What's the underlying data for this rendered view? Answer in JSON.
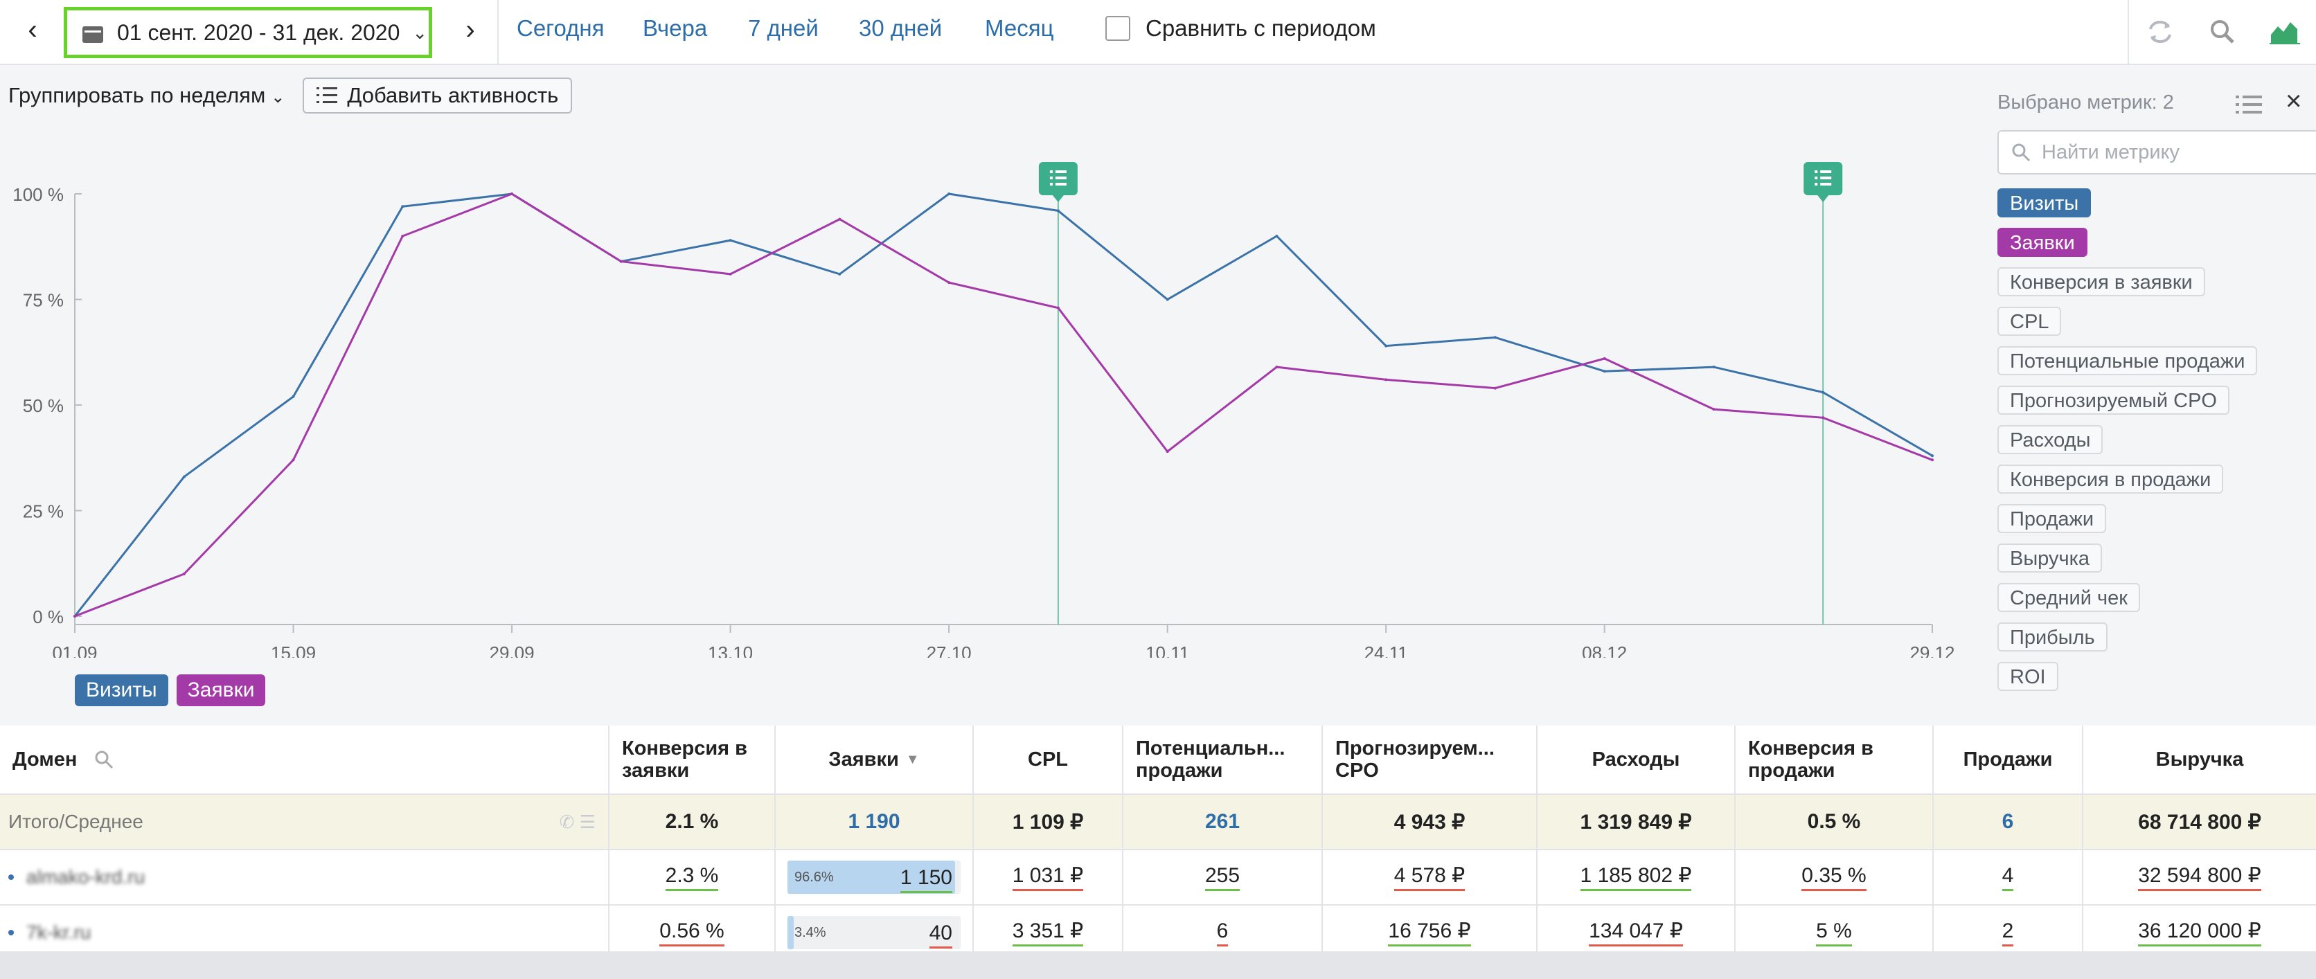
{
  "topbar": {
    "date_range": "01 сент. 2020 - 31 дек. 2020",
    "periods": [
      "Сегодня",
      "Вчера",
      "7 дней",
      "30 дней",
      "Месяц"
    ],
    "compare_label": "Сравнить с периодом",
    "compare_checked": false
  },
  "toolbar": {
    "group_label": "Группировать по неделям",
    "add_activity_label": "Добавить активность"
  },
  "chart_data": {
    "type": "line",
    "x": [
      "01.09",
      "08.09",
      "15.09",
      "22.09",
      "29.09",
      "06.10",
      "13.10",
      "20.10",
      "27.10",
      "03.11",
      "10.11",
      "17.11",
      "24.11",
      "01.12",
      "08.12",
      "15.12",
      "22.12",
      "29.12"
    ],
    "x_ticks": [
      "01.09",
      "15.09",
      "29.09",
      "13.10",
      "27.10",
      "10.11",
      "24.11",
      "08.12",
      "29.12"
    ],
    "y_ticks": [
      "0 %",
      "25 %",
      "50 %",
      "75 %",
      "100 %"
    ],
    "ylim": [
      0,
      100
    ],
    "series": [
      {
        "name": "Визиты",
        "color": "#3b73a8",
        "values": [
          0,
          33,
          52,
          97,
          100,
          84,
          89,
          81,
          100,
          96,
          75,
          90,
          64,
          66,
          58,
          59,
          53,
          38
        ]
      },
      {
        "name": "Заявки",
        "color": "#a439a8",
        "values": [
          0,
          10,
          37,
          90,
          100,
          84,
          81,
          94,
          79,
          73,
          39,
          59,
          56,
          54,
          61,
          49,
          47,
          37
        ]
      }
    ],
    "annotation_markers": [
      "03.11",
      "22.12"
    ],
    "grid": false,
    "legend_position": "bottom-left"
  },
  "legend": [
    "Визиты",
    "Заявки"
  ],
  "side_panel": {
    "title": "Выбрано метрик: 2",
    "search_placeholder": "Найти метрику",
    "metrics": [
      {
        "label": "Визиты",
        "selected": true,
        "color": "#3b73a8"
      },
      {
        "label": "Заявки",
        "selected": true,
        "color": "#a439a8"
      },
      {
        "label": "Конверсия в заявки",
        "selected": false
      },
      {
        "label": "CPL",
        "selected": false
      },
      {
        "label": "Потенциальные продажи",
        "selected": false
      },
      {
        "label": "Прогнозируемый CPO",
        "selected": false
      },
      {
        "label": "Расходы",
        "selected": false
      },
      {
        "label": "Конверсия в продажи",
        "selected": false
      },
      {
        "label": "Продажи",
        "selected": false
      },
      {
        "label": "Выручка",
        "selected": false
      },
      {
        "label": "Средний чек",
        "selected": false
      },
      {
        "label": "Прибыль",
        "selected": false
      },
      {
        "label": "ROI",
        "selected": false
      }
    ]
  },
  "table": {
    "domain_header": "Домен",
    "headers": [
      "Конверсия в заявки",
      "Заявки",
      "CPL",
      "Потенциальн... продажи",
      "Прогнозируем... CPO",
      "Расходы",
      "Конверсия в продажи",
      "Продажи",
      "Выручка"
    ],
    "total": {
      "label": "Итого/Среднее",
      "values": [
        "2.1 %",
        "1 190",
        "1 109 ₽",
        "261",
        "4 943 ₽",
        "1 319 849 ₽",
        "0.5 %",
        "6",
        "68 714 800 ₽"
      ]
    },
    "rows": [
      {
        "domain": "almako-krd.ru",
        "conv": "2.3 %",
        "leads_pct_text": "96.6%",
        "leads_pct": 96.6,
        "leads": "1 150",
        "cpl": "1 031 ₽",
        "potential": "255",
        "cpo": "4 578 ₽",
        "spend": "1 185 802 ₽",
        "conv_sales": "0.35 %",
        "sales": "4",
        "revenue": "32 594 800 ₽"
      },
      {
        "domain": "7k-kr.ru",
        "conv": "0.56 %",
        "leads_pct_text": "3.4%",
        "leads_pct": 3.4,
        "leads": "40",
        "cpl": "3 351 ₽",
        "potential": "6",
        "cpo": "16 756 ₽",
        "spend": "134 047 ₽",
        "conv_sales": "5 %",
        "sales": "2",
        "revenue": "36 120 000 ₽"
      }
    ]
  }
}
